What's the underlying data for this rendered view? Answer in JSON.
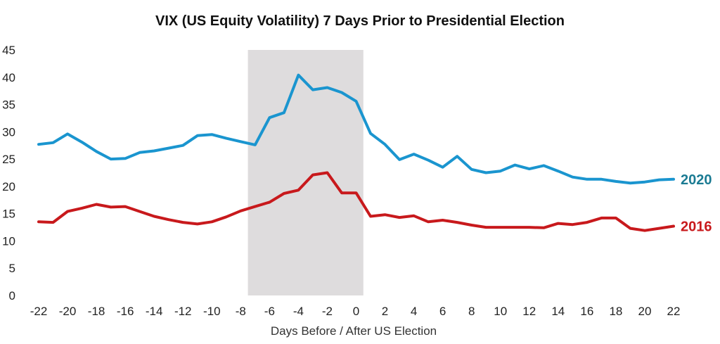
{
  "chart_data": {
    "type": "line",
    "title": "VIX (US Equity Volatility) 7 Days Prior to Presidential Election",
    "xlabel": "Days Before / After US Election",
    "ylabel": "",
    "xlim": [
      -22,
      22
    ],
    "ylim": [
      0,
      45
    ],
    "x_ticks": [
      "-22",
      "-20",
      "-18",
      "-16",
      "-14",
      "-12",
      "-10",
      "-8",
      "-6",
      "-4",
      "-2",
      "0",
      "2",
      "4",
      "6",
      "8",
      "10",
      "12",
      "14",
      "16",
      "18",
      "20",
      "22"
    ],
    "y_ticks": [
      "0",
      "5",
      "10",
      "15",
      "20",
      "25",
      "30",
      "35",
      "40",
      "45"
    ],
    "grid": false,
    "shaded_region": {
      "x_start": -7.5,
      "x_end": 0.5,
      "color": "#dedcdd"
    },
    "x": [
      -22,
      -21,
      -20,
      -19,
      -18,
      -17,
      -16,
      -15,
      -14,
      -13,
      -12,
      -11,
      -10,
      -9,
      -8,
      -7,
      -6,
      -5,
      -4,
      -3,
      -2,
      -1,
      0,
      1,
      2,
      3,
      4,
      5,
      6,
      7,
      8,
      9,
      10,
      11,
      12,
      13,
      14,
      15,
      16,
      17,
      18,
      19,
      20,
      21,
      22
    ],
    "series": [
      {
        "name": "2020",
        "color": "#1a95cf",
        "label_color": "#1b7b93",
        "values": [
          27.7,
          28.0,
          29.6,
          28.1,
          26.4,
          25.0,
          25.1,
          26.2,
          26.5,
          27.0,
          27.5,
          29.3,
          29.5,
          28.8,
          28.2,
          27.6,
          32.6,
          33.5,
          40.4,
          37.7,
          38.1,
          37.2,
          35.6,
          29.7,
          27.7,
          24.9,
          25.9,
          24.8,
          23.5,
          25.5,
          23.1,
          22.5,
          22.8,
          23.9,
          23.2,
          23.8,
          22.8,
          21.7,
          21.3,
          21.3,
          20.9,
          20.6,
          20.8,
          21.2,
          21.3
        ]
      },
      {
        "name": "2016",
        "color": "#c8191c",
        "label_color": "#c8191c",
        "values": [
          13.5,
          13.4,
          15.4,
          16.0,
          16.7,
          16.2,
          16.3,
          15.4,
          14.5,
          13.9,
          13.4,
          13.1,
          13.5,
          14.4,
          15.5,
          16.3,
          17.1,
          18.7,
          19.3,
          22.1,
          22.5,
          18.8,
          18.8,
          14.5,
          14.8,
          14.3,
          14.6,
          13.5,
          13.8,
          13.4,
          12.9,
          12.5,
          12.5,
          12.5,
          12.5,
          12.4,
          13.2,
          13.0,
          13.4,
          14.2,
          14.2,
          12.3,
          11.9,
          12.3,
          12.7
        ]
      }
    ]
  }
}
